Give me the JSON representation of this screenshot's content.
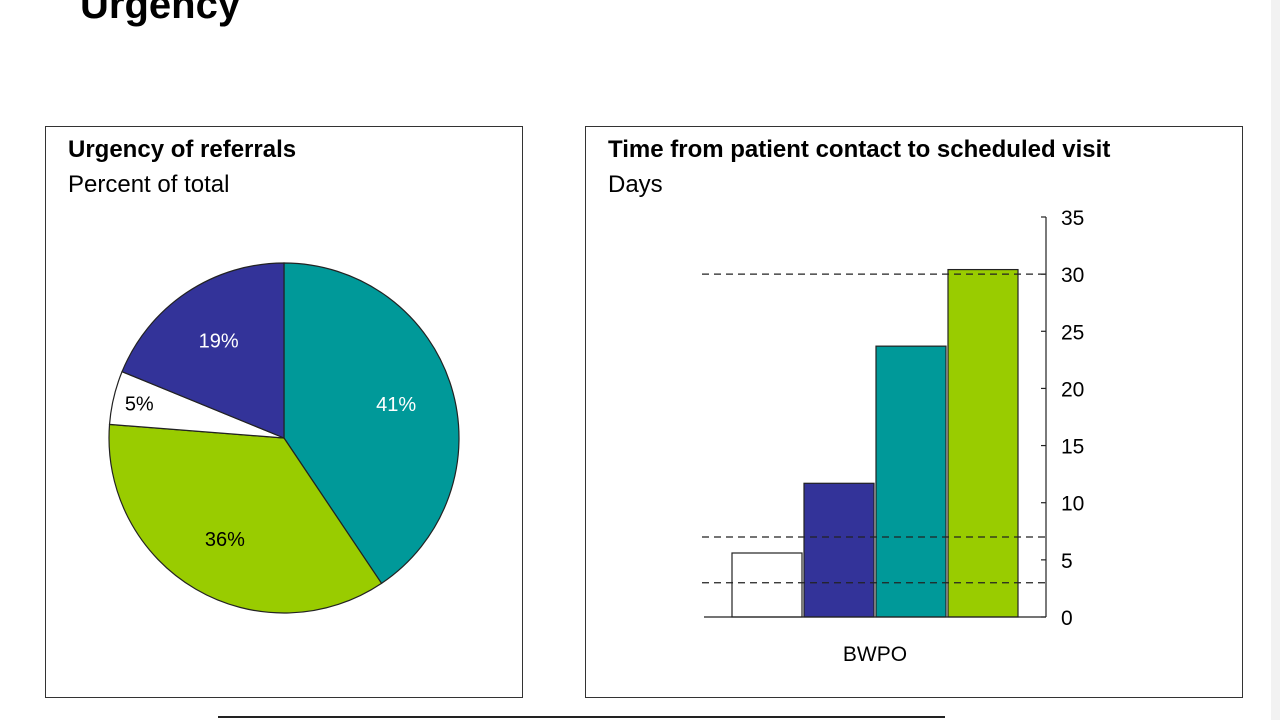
{
  "slide": {
    "title": "Urgency"
  },
  "chart_data": [
    {
      "type": "pie",
      "title": "Urgency of referrals",
      "subtitle": "Percent of total",
      "slices": [
        {
          "label": "41%",
          "value": 41,
          "color": "#009999",
          "label_color": "#ffffff"
        },
        {
          "label": "36%",
          "value": 36,
          "color": "#99cc00",
          "label_color": "#000000"
        },
        {
          "label": "5%",
          "value": 5,
          "color": "#ffffff",
          "label_color": "#000000"
        },
        {
          "label": "19%",
          "value": 19,
          "color": "#333399",
          "label_color": "#ffffff"
        }
      ],
      "start_angle_deg": 0,
      "direction": "clockwise"
    },
    {
      "type": "bar",
      "title": "Time from patient contact to scheduled visit",
      "subtitle": "Days",
      "categories": [
        "BWPO"
      ],
      "series": [
        {
          "value": 5.6,
          "color": "#ffffff"
        },
        {
          "value": 11.7,
          "color": "#333399"
        },
        {
          "value": 23.7,
          "color": "#009999"
        },
        {
          "value": 30.4,
          "color": "#99cc00"
        }
      ],
      "ylim": [
        0,
        35
      ],
      "yticks": [
        "0",
        "5",
        "10",
        "15",
        "20",
        "25",
        "30",
        "35"
      ],
      "y_axis_side": "right",
      "reference_lines": [
        3,
        7,
        30
      ],
      "reference_line_style": "dashed"
    }
  ]
}
